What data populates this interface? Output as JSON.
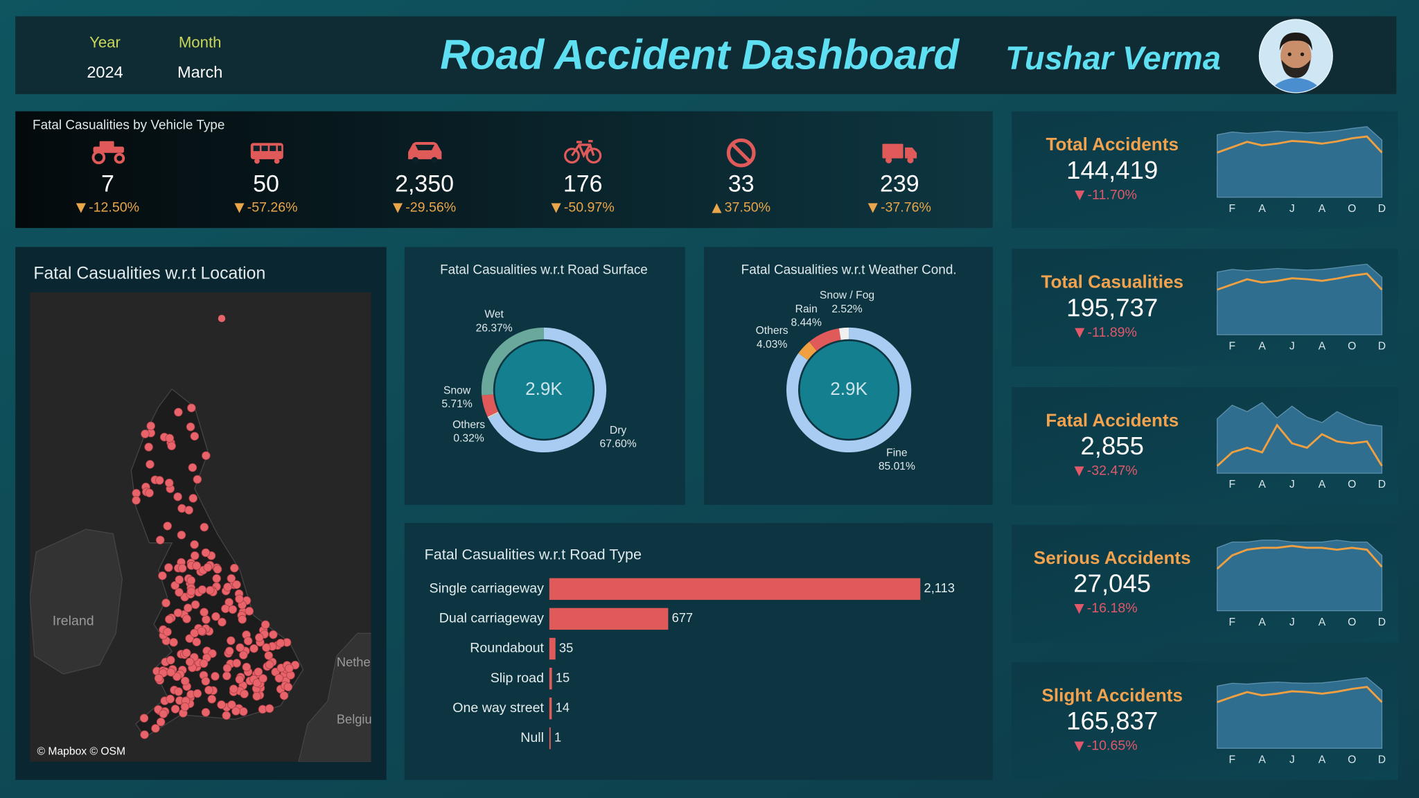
{
  "header": {
    "year_label": "Year",
    "year": "2024",
    "month_label": "Month",
    "month": "March",
    "title": "Road Accident Dashboard",
    "author": "Tushar Verma"
  },
  "vehicle_panel": {
    "title": "Fatal Casualities by Vehicle Type",
    "items": [
      {
        "value": "7",
        "change": "-12.50%"
      },
      {
        "value": "50",
        "change": "-57.26%"
      },
      {
        "value": "2,350",
        "change": "-29.56%"
      },
      {
        "value": "176",
        "change": "-50.97%"
      },
      {
        "value": "33",
        "change": "37.50%"
      },
      {
        "value": "239",
        "change": "-37.76%"
      }
    ]
  },
  "kpis": [
    {
      "title": "Total Accidents",
      "value": "144,419",
      "change": "-11.70%"
    },
    {
      "title": "Total Casualities",
      "value": "195,737",
      "change": "-11.89%"
    },
    {
      "title": "Fatal Accidents",
      "value": "2,855",
      "change": "-32.47%"
    },
    {
      "title": "Serious Accidents",
      "value": "27,045",
      "change": "-16.18%"
    },
    {
      "title": "Slight Accidents",
      "value": "165,837",
      "change": "-10.65%"
    }
  ],
  "map": {
    "title": "Fatal Casualities w.r.t Location",
    "labels": [
      "Ireland",
      "Netherlands",
      "Belgium"
    ],
    "attribution": "© Mapbox © OSM"
  },
  "chart_data": [
    {
      "type": "donut",
      "title": "Fatal Casualities w.r.t Road Surface",
      "center_label": "2.9K",
      "categories": [
        "Dry",
        "Others",
        "Snow",
        "Wet"
      ],
      "values": [
        67.6,
        0.32,
        5.71,
        26.37
      ],
      "value_labels": [
        "67.60%",
        "0.32%",
        "5.71%",
        "26.37%"
      ],
      "colors": [
        "#a9cdf2",
        "#e8e0c8",
        "#e05a5a",
        "#6aa89c"
      ]
    },
    {
      "type": "donut",
      "title": "Fatal Casualities w.r.t Weather Cond.",
      "center_label": "2.9K",
      "categories": [
        "Fine",
        "Others",
        "Rain",
        "Snow / Fog"
      ],
      "values": [
        85.01,
        4.03,
        8.44,
        2.52
      ],
      "value_labels": [
        "85.01%",
        "4.03%",
        "8.44%",
        "2.52%"
      ],
      "colors": [
        "#a9cdf2",
        "#f0a040",
        "#e05a5a",
        "#f0f0f0"
      ]
    },
    {
      "type": "bar",
      "orientation": "horizontal",
      "title": "Fatal Casualities w.r.t Road Type",
      "color": "#e05a5a",
      "categories": [
        "Single carriageway",
        "Dual carriageway",
        "Roundabout",
        "Slip road",
        "One way street",
        "Null"
      ],
      "values": [
        2113,
        677,
        35,
        15,
        14,
        1
      ],
      "value_labels": [
        "2,113",
        "677",
        "35",
        "15",
        "14",
        "1"
      ]
    },
    {
      "type": "sparkline",
      "categories": [
        null,
        "F",
        null,
        "A",
        null,
        "J",
        null,
        "A",
        null,
        "O",
        null,
        "D"
      ],
      "series": [
        {
          "type": "area",
          "color": "#2f6e8f",
          "values": [
            14.0,
            14.6,
            14.3,
            14.5,
            14.8,
            14.6,
            14.4,
            14.6,
            14.9,
            15.4,
            15.8,
            12.8
          ]
        },
        {
          "type": "line",
          "color": "#f0a040",
          "values": [
            10.0,
            11.2,
            12.4,
            11.6,
            12.0,
            12.6,
            12.4,
            12.0,
            12.5,
            13.2,
            13.6,
            10.0
          ]
        }
      ]
    },
    {
      "type": "sparkline",
      "categories": [
        null,
        "F",
        null,
        "A",
        null,
        "J",
        null,
        "A",
        null,
        "O",
        null,
        "D"
      ],
      "series": [
        {
          "type": "area",
          "color": "#2f6e8f",
          "values": [
            19.2,
            20.0,
            19.6,
            19.9,
            20.3,
            20.0,
            19.8,
            20.0,
            20.5,
            21.1,
            21.6,
            17.6
          ]
        },
        {
          "type": "line",
          "color": "#f0a040",
          "values": [
            13.8,
            15.4,
            17.0,
            16.0,
            16.5,
            17.3,
            17.0,
            16.5,
            17.2,
            18.1,
            18.7,
            13.8
          ]
        }
      ]
    },
    {
      "type": "sparkline",
      "categories": [
        null,
        "F",
        null,
        "A",
        null,
        "J",
        null,
        "A",
        null,
        "O",
        null,
        "D"
      ],
      "series": [
        {
          "type": "area",
          "color": "#2f6e8f",
          "values": [
            308,
            385,
            349,
            400,
            313,
            380,
            318,
            287,
            349,
            308,
            277,
            267
          ]
        },
        {
          "type": "line",
          "color": "#f0a040",
          "values": [
            41,
            118,
            144,
            118,
            272,
            169,
            144,
            221,
            180,
            169,
            180,
            41
          ]
        }
      ]
    },
    {
      "type": "sparkline",
      "categories": [
        null,
        "F",
        null,
        "A",
        null,
        "J",
        null,
        "A",
        null,
        "O",
        null,
        "D"
      ],
      "series": [
        {
          "type": "area",
          "color": "#2f6e8f",
          "values": [
            3.3,
            3.6,
            3.6,
            3.7,
            3.7,
            3.6,
            3.6,
            3.6,
            3.7,
            3.6,
            3.6,
            2.9
          ]
        },
        {
          "type": "line",
          "color": "#f0a040",
          "values": [
            2.2,
            2.9,
            3.2,
            3.3,
            3.3,
            3.4,
            3.3,
            3.3,
            3.2,
            3.3,
            3.2,
            2.3
          ]
        }
      ]
    },
    {
      "type": "sparkline",
      "categories": [
        null,
        "F",
        null,
        "A",
        null,
        "J",
        null,
        "A",
        null,
        "O",
        null,
        "D"
      ],
      "series": [
        {
          "type": "area",
          "color": "#2f6e8f",
          "values": [
            15.5,
            16.2,
            16.0,
            16.3,
            16.5,
            16.3,
            16.2,
            16.3,
            16.7,
            17.2,
            17.6,
            14.5
          ]
        },
        {
          "type": "line",
          "color": "#f0a040",
          "values": [
            11.5,
            12.8,
            14.0,
            13.2,
            13.6,
            14.2,
            14.0,
            13.6,
            14.1,
            14.8,
            15.3,
            11.5
          ]
        }
      ]
    }
  ]
}
